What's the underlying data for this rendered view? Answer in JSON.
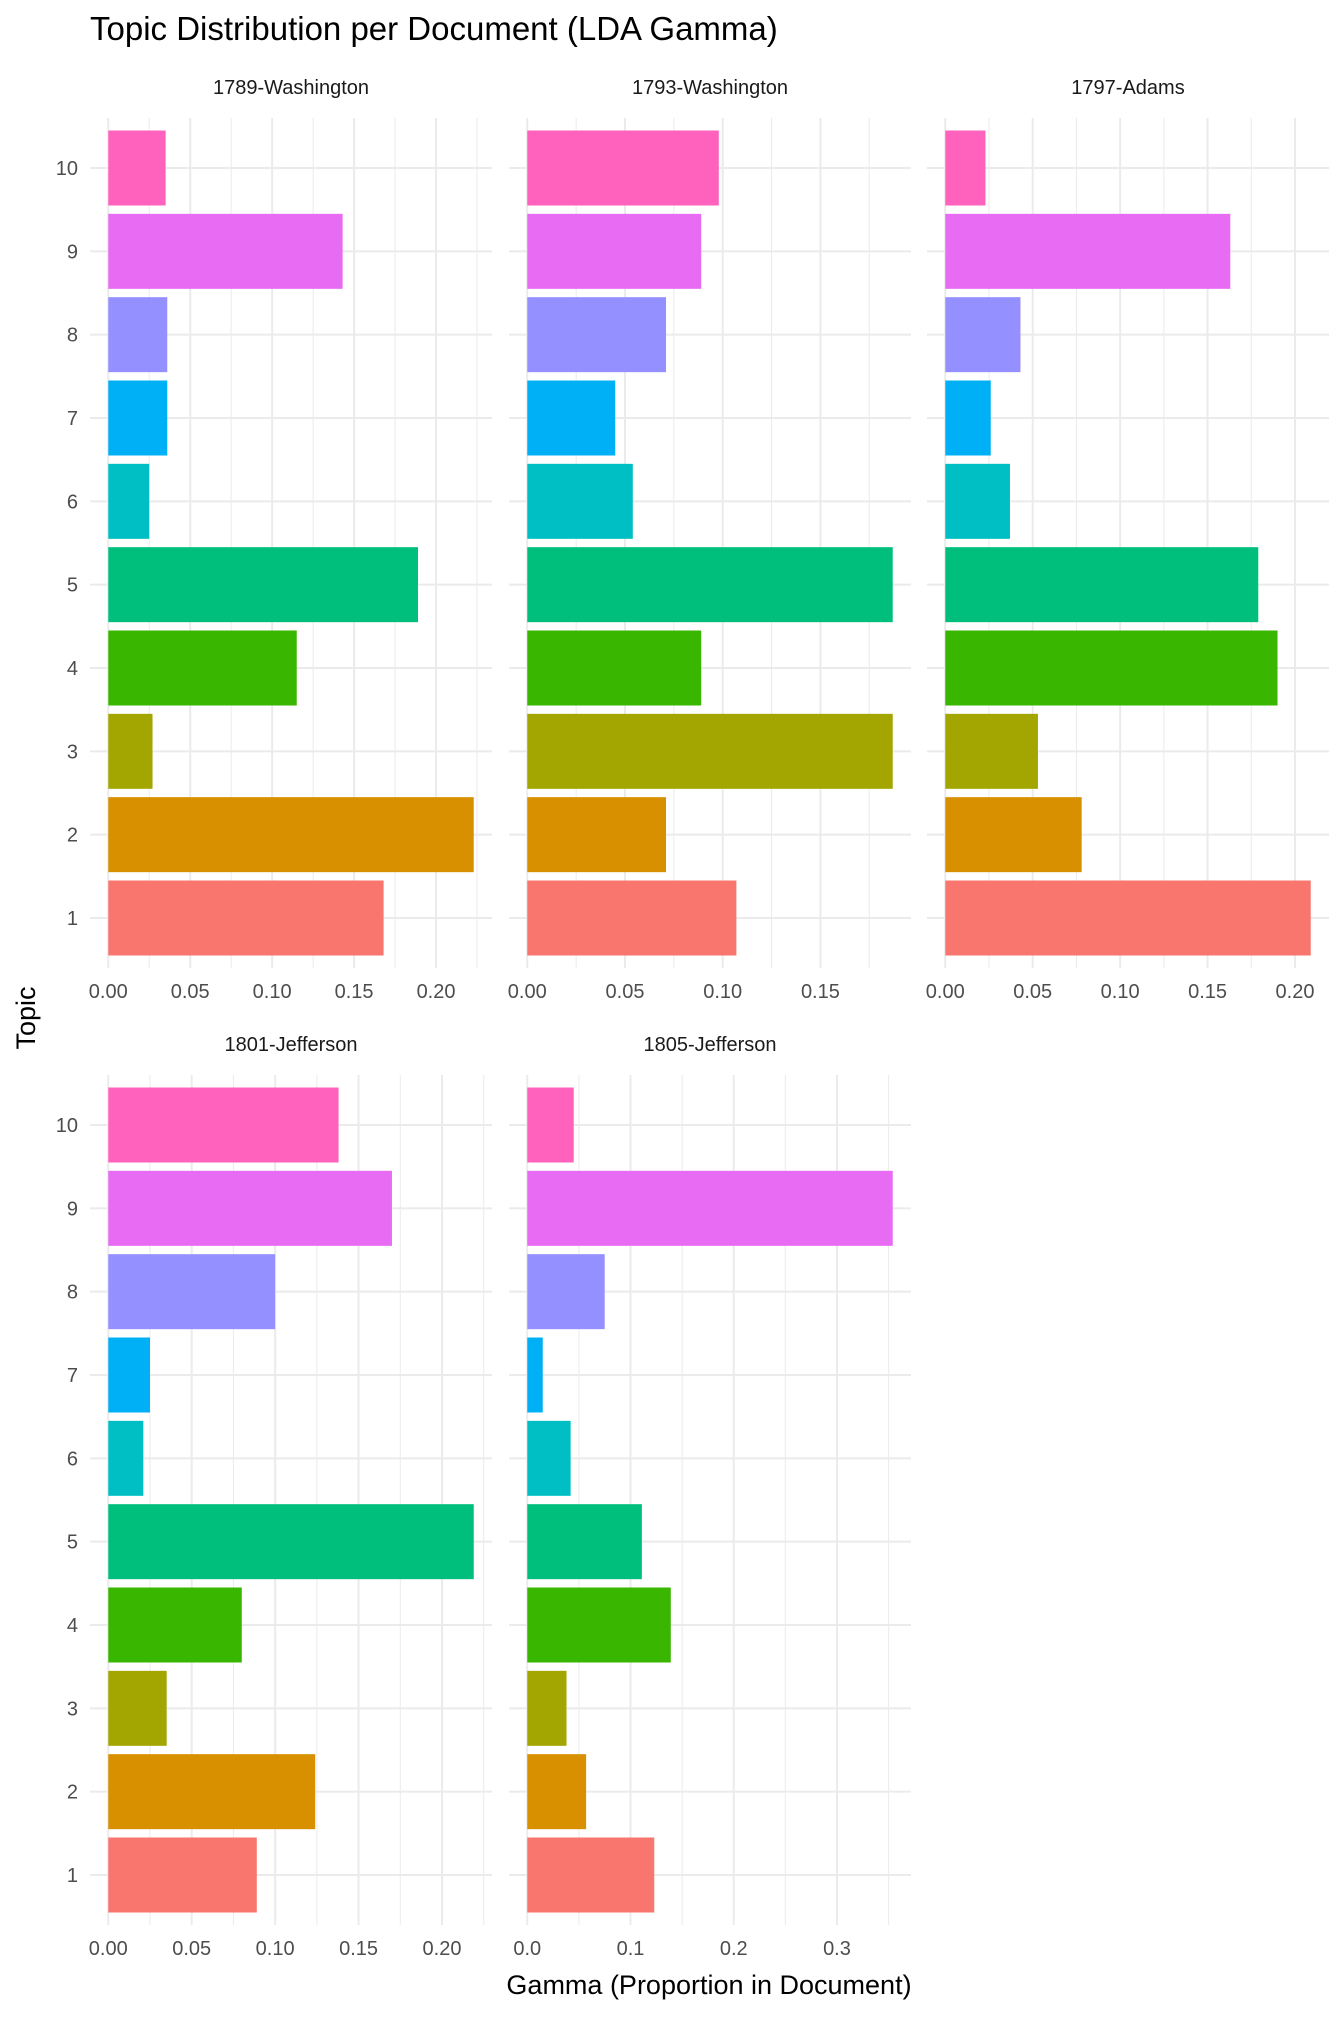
{
  "chart_data": {
    "type": "bar",
    "orientation": "horizontal",
    "title": "Topic Distribution per Document (LDA Gamma)",
    "xlabel": "Gamma (Proportion in Document)",
    "ylabel": "Topic",
    "categories": [
      "1",
      "2",
      "3",
      "4",
      "5",
      "6",
      "7",
      "8",
      "9",
      "10"
    ],
    "colors": [
      "#F8766D",
      "#D89000",
      "#A3A500",
      "#39B600",
      "#00BF7D",
      "#00BFC4",
      "#00B0F6",
      "#9590FF",
      "#E76BF3",
      "#FF62BC"
    ],
    "grid": true,
    "legend": "none",
    "facets": [
      {
        "name": "1789-Washington",
        "ticks": [
          "0.00",
          "0.05",
          "0.10",
          "0.15",
          "0.20"
        ],
        "tick_values": [
          0,
          0.05,
          0.1,
          0.15,
          0.2
        ],
        "values": [
          0.168,
          0.223,
          0.027,
          0.115,
          0.189,
          0.025,
          0.036,
          0.036,
          0.143,
          0.035
        ]
      },
      {
        "name": "1793-Washington",
        "ticks": [
          "0.00",
          "0.05",
          "0.10",
          "0.15"
        ],
        "tick_values": [
          0,
          0.05,
          0.1,
          0.15
        ],
        "values": [
          0.107,
          0.071,
          0.187,
          0.089,
          0.187,
          0.054,
          0.045,
          0.071,
          0.089,
          0.098
        ]
      },
      {
        "name": "1797-Adams",
        "ticks": [
          "0.00",
          "0.05",
          "0.10",
          "0.15",
          "0.20"
        ],
        "tick_values": [
          0,
          0.05,
          0.1,
          0.15,
          0.2
        ],
        "values": [
          0.209,
          0.078,
          0.053,
          0.19,
          0.179,
          0.037,
          0.026,
          0.043,
          0.163,
          0.023
        ]
      },
      {
        "name": "1801-Jefferson",
        "ticks": [
          "0.00",
          "0.05",
          "0.10",
          "0.15",
          "0.20"
        ],
        "tick_values": [
          0,
          0.05,
          0.1,
          0.15,
          0.2
        ],
        "values": [
          0.089,
          0.124,
          0.035,
          0.08,
          0.219,
          0.021,
          0.025,
          0.1,
          0.17,
          0.138
        ]
      },
      {
        "name": "1805-Jefferson",
        "ticks": [
          "0.0",
          "0.1",
          "0.2",
          "0.3"
        ],
        "tick_values": [
          0,
          0.1,
          0.2,
          0.3
        ],
        "values": [
          0.123,
          0.057,
          0.038,
          0.139,
          0.111,
          0.042,
          0.015,
          0.075,
          0.354,
          0.045
        ]
      }
    ]
  }
}
